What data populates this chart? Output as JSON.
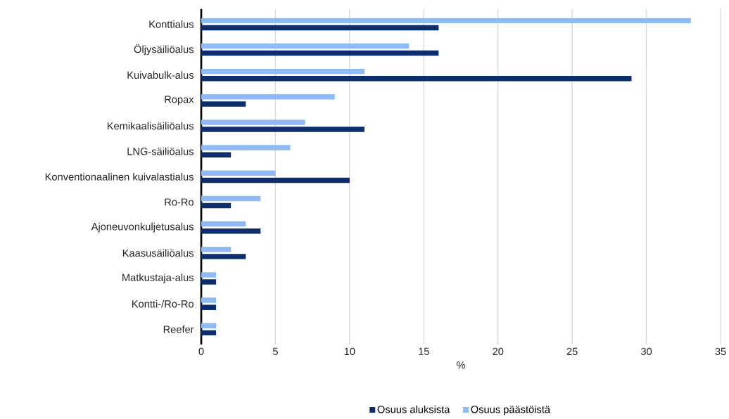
{
  "chart_data": {
    "type": "bar",
    "orientation": "horizontal",
    "categories": [
      "Konttialus",
      "Öljysäiliöalus",
      "Kuivabulk-alus",
      "Ropax",
      "Kemikaalisäiliöalus",
      "LNG-säiliöalus",
      "Konventionaalinen kuivalastialus",
      "Ro-Ro",
      "Ajoneuvonkuljetusalus",
      "Kaasusäiliöalus",
      "Matkustaja-alus",
      "Kontti-/Ro-Ro",
      "Reefer"
    ],
    "series": [
      {
        "name": "Osuus aluksista",
        "color": "#0e2d6d",
        "values": [
          16,
          16,
          29,
          3,
          11,
          2,
          10,
          2,
          4,
          3,
          1,
          1,
          1
        ]
      },
      {
        "name": "Osuus päästöistä",
        "color": "#8fbaf6",
        "values": [
          33,
          14,
          11,
          9,
          7,
          6,
          5,
          4,
          3,
          2,
          1,
          1,
          1
        ]
      }
    ],
    "xlabel": "%",
    "xlim": [
      0,
      35
    ],
    "xticks": [
      0,
      5,
      10,
      15,
      20,
      25,
      30,
      35
    ],
    "grid": "x",
    "legend": "bottom"
  }
}
